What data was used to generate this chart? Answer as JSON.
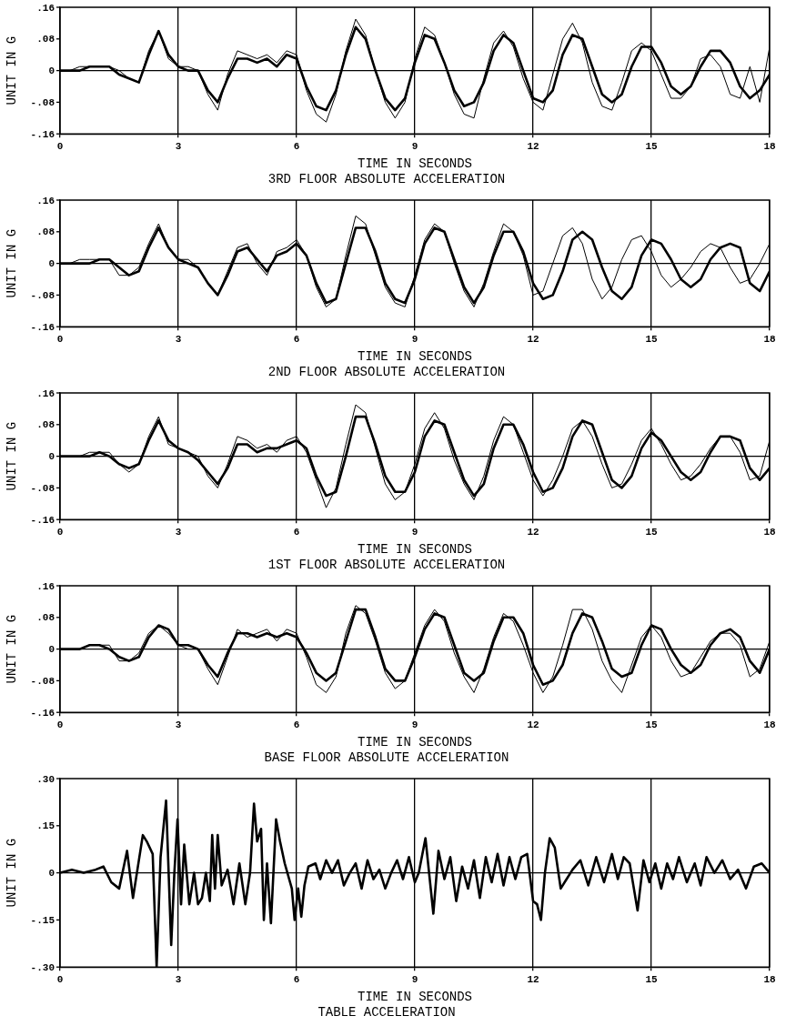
{
  "chart_data": [
    {
      "type": "line",
      "title": "3RD FLOOR ABSOLUTE ACCELERATION",
      "xlabel": "TIME IN SECONDS",
      "ylabel": "UNIT IN G",
      "marker": "none",
      "grid": "x",
      "x": [
        0,
        0.25,
        0.5,
        0.75,
        1,
        1.25,
        1.5,
        1.75,
        2,
        2.25,
        2.5,
        2.75,
        3,
        3.25,
        3.5,
        3.75,
        4,
        4.25,
        4.5,
        4.75,
        5,
        5.25,
        5.5,
        5.75,
        6,
        6.25,
        6.5,
        6.75,
        7,
        7.25,
        7.5,
        7.75,
        8,
        8.25,
        8.5,
        8.75,
        9,
        9.25,
        9.5,
        9.75,
        10,
        10.25,
        10.5,
        10.75,
        11,
        11.25,
        11.5,
        11.75,
        12,
        12.25,
        12.5,
        12.75,
        13,
        13.25,
        13.5,
        13.75,
        14,
        14.25,
        14.5,
        14.75,
        15,
        15.25,
        15.5,
        15.75,
        16,
        16.25,
        16.5,
        16.75,
        17,
        17.25,
        17.5,
        17.75,
        18
      ],
      "xlim": [
        0,
        18
      ],
      "xticks": [
        0,
        3,
        6,
        9,
        12,
        15,
        18
      ],
      "ylim": [
        -0.16,
        0.16
      ],
      "yticks": [
        {
          "value": -0.16,
          "label": "-.16"
        },
        {
          "value": -0.08,
          "label": "-.08"
        },
        {
          "value": 0,
          "label": "0"
        },
        {
          "value": 0.08,
          "label": ".08"
        },
        {
          "value": 0.16,
          "label": ".16"
        }
      ],
      "ref_lines": [
        {
          "axis": "y",
          "value": 0
        }
      ],
      "series": [
        {
          "color": "#000000",
          "values": [
            0,
            0,
            0,
            0.01,
            0.01,
            0.01,
            -0.01,
            -0.02,
            -0.03,
            0.04,
            0.1,
            0.04,
            0.01,
            0,
            0,
            -0.05,
            -0.08,
            -0.02,
            0.03,
            0.03,
            0.02,
            0.03,
            0.01,
            0.04,
            0.03,
            -0.04,
            -0.09,
            -0.1,
            -0.05,
            0.04,
            0.11,
            0.08,
            0,
            -0.07,
            -0.1,
            -0.07,
            0.02,
            0.09,
            0.08,
            0.02,
            -0.05,
            -0.09,
            -0.08,
            -0.03,
            0.05,
            0.09,
            0.07,
            0,
            -0.07,
            -0.08,
            -0.05,
            0.04,
            0.09,
            0.08,
            0.01,
            -0.06,
            -0.08,
            -0.06,
            0.01,
            0.06,
            0.06,
            0.02,
            -0.04,
            -0.06,
            -0.04,
            0.01,
            0.05,
            0.05,
            0.02,
            -0.04,
            -0.07,
            -0.05,
            -0.01
          ]
        },
        {
          "color": "#000000",
          "values": [
            0,
            0,
            0.01,
            0.01,
            0.01,
            0.01,
            0,
            -0.02,
            -0.03,
            0.05,
            0.1,
            0.03,
            0.01,
            0.01,
            0,
            -0.06,
            -0.1,
            -0.01,
            0.05,
            0.04,
            0.03,
            0.04,
            0.02,
            0.05,
            0.04,
            -0.05,
            -0.11,
            -0.13,
            -0.06,
            0.05,
            0.13,
            0.09,
            0,
            -0.08,
            -0.12,
            -0.08,
            0.03,
            0.11,
            0.09,
            0.02,
            -0.06,
            -0.11,
            -0.12,
            -0.02,
            0.07,
            0.1,
            0.06,
            -0.02,
            -0.08,
            -0.1,
            -0.01,
            0.08,
            0.12,
            0.07,
            -0.03,
            -0.09,
            -0.1,
            -0.03,
            0.05,
            0.07,
            0.05,
            -0.01,
            -0.07,
            -0.07,
            -0.04,
            0.03,
            0.04,
            0.01,
            -0.06,
            -0.07,
            0.01,
            -0.08,
            0.06
          ]
        }
      ]
    },
    {
      "type": "line",
      "title": "2ND FLOOR ABSOLUTE ACCELERATION",
      "xlabel": "TIME IN SECONDS",
      "ylabel": "UNIT IN G",
      "marker": "none",
      "grid": "x",
      "x": [
        0,
        0.25,
        0.5,
        0.75,
        1,
        1.25,
        1.5,
        1.75,
        2,
        2.25,
        2.5,
        2.75,
        3,
        3.25,
        3.5,
        3.75,
        4,
        4.25,
        4.5,
        4.75,
        5,
        5.25,
        5.5,
        5.75,
        6,
        6.25,
        6.5,
        6.75,
        7,
        7.25,
        7.5,
        7.75,
        8,
        8.25,
        8.5,
        8.75,
        9,
        9.25,
        9.5,
        9.75,
        10,
        10.25,
        10.5,
        10.75,
        11,
        11.25,
        11.5,
        11.75,
        12,
        12.25,
        12.5,
        12.75,
        13,
        13.25,
        13.5,
        13.75,
        14,
        14.25,
        14.5,
        14.75,
        15,
        15.25,
        15.5,
        15.75,
        16,
        16.25,
        16.5,
        16.75,
        17,
        17.25,
        17.5,
        17.75,
        18
      ],
      "xlim": [
        0,
        18
      ],
      "xticks": [
        0,
        3,
        6,
        9,
        12,
        15,
        18
      ],
      "ylim": [
        -0.16,
        0.16
      ],
      "yticks": [
        {
          "value": -0.16,
          "label": "-.16"
        },
        {
          "value": -0.08,
          "label": "-.08"
        },
        {
          "value": 0,
          "label": "0"
        },
        {
          "value": 0.08,
          "label": ".08"
        },
        {
          "value": 0.16,
          "label": ".16"
        }
      ],
      "ref_lines": [
        {
          "axis": "y",
          "value": 0
        }
      ],
      "series": [
        {
          "color": "#000000",
          "values": [
            0,
            0,
            0,
            0,
            0.01,
            0.01,
            -0.01,
            -0.03,
            -0.02,
            0.04,
            0.09,
            0.04,
            0.01,
            0,
            -0.01,
            -0.05,
            -0.08,
            -0.03,
            0.03,
            0.04,
            0.01,
            -0.02,
            0.02,
            0.03,
            0.05,
            0.02,
            -0.05,
            -0.1,
            -0.09,
            0,
            0.09,
            0.09,
            0.03,
            -0.05,
            -0.09,
            -0.1,
            -0.04,
            0.05,
            0.09,
            0.08,
            0.01,
            -0.06,
            -0.1,
            -0.06,
            0.02,
            0.08,
            0.08,
            0.03,
            -0.05,
            -0.09,
            -0.08,
            -0.02,
            0.06,
            0.08,
            0.06,
            -0.01,
            -0.07,
            -0.09,
            -0.06,
            0.02,
            0.06,
            0.05,
            0.01,
            -0.04,
            -0.06,
            -0.04,
            0.01,
            0.04,
            0.05,
            0.04,
            -0.05,
            -0.07,
            -0.02
          ]
        },
        {
          "color": "#000000",
          "values": [
            0,
            0,
            0.01,
            0.01,
            0.01,
            0.01,
            -0.03,
            -0.03,
            -0.01,
            0.05,
            0.1,
            0.04,
            0.01,
            0.01,
            -0.01,
            -0.05,
            -0.08,
            -0.02,
            0.04,
            0.05,
            0,
            -0.03,
            0.03,
            0.04,
            0.06,
            0.02,
            -0.06,
            -0.11,
            -0.09,
            0.02,
            0.12,
            0.1,
            0.02,
            -0.06,
            -0.1,
            -0.11,
            -0.03,
            0.06,
            0.1,
            0.08,
            0,
            -0.07,
            -0.11,
            -0.05,
            0.03,
            0.1,
            0.08,
            0.02,
            -0.08,
            -0.07,
            0,
            0.07,
            0.09,
            0.05,
            -0.04,
            -0.09,
            -0.06,
            0.01,
            0.06,
            0.07,
            0.03,
            -0.03,
            -0.06,
            -0.04,
            -0.01,
            0.03,
            0.05,
            0.04,
            -0.01,
            -0.05,
            -0.04,
            0,
            0.05
          ]
        }
      ]
    },
    {
      "type": "line",
      "title": "1ST FLOOR ABSOLUTE ACCELERATION",
      "xlabel": "TIME IN SECONDS",
      "ylabel": "UNIT IN G",
      "marker": "none",
      "grid": "x",
      "x": [
        0,
        0.25,
        0.5,
        0.75,
        1,
        1.25,
        1.5,
        1.75,
        2,
        2.25,
        2.5,
        2.75,
        3,
        3.25,
        3.5,
        3.75,
        4,
        4.25,
        4.5,
        4.75,
        5,
        5.25,
        5.5,
        5.75,
        6,
        6.25,
        6.5,
        6.75,
        7,
        7.25,
        7.5,
        7.75,
        8,
        8.25,
        8.5,
        8.75,
        9,
        9.25,
        9.5,
        9.75,
        10,
        10.25,
        10.5,
        10.75,
        11,
        11.25,
        11.5,
        11.75,
        12,
        12.25,
        12.5,
        12.75,
        13,
        13.25,
        13.5,
        13.75,
        14,
        14.25,
        14.5,
        14.75,
        15,
        15.25,
        15.5,
        15.75,
        16,
        16.25,
        16.5,
        16.75,
        17,
        17.25,
        17.5,
        17.75,
        18
      ],
      "xlim": [
        0,
        18
      ],
      "xticks": [
        0,
        3,
        6,
        9,
        12,
        15,
        18
      ],
      "ylim": [
        -0.16,
        0.16
      ],
      "yticks": [
        {
          "value": -0.16,
          "label": "-.16"
        },
        {
          "value": -0.08,
          "label": "-.08"
        },
        {
          "value": 0,
          "label": "0"
        },
        {
          "value": 0.08,
          "label": ".08"
        },
        {
          "value": 0.16,
          "label": ".16"
        }
      ],
      "ref_lines": [
        {
          "axis": "y",
          "value": 0
        }
      ],
      "series": [
        {
          "color": "#000000",
          "values": [
            0,
            0,
            0,
            0,
            0.01,
            0,
            -0.02,
            -0.03,
            -0.02,
            0.04,
            0.09,
            0.04,
            0.02,
            0.01,
            -0.01,
            -0.04,
            -0.07,
            -0.03,
            0.03,
            0.03,
            0.01,
            0.02,
            0.02,
            0.03,
            0.04,
            0.02,
            -0.05,
            -0.1,
            -0.09,
            0,
            0.1,
            0.1,
            0.03,
            -0.05,
            -0.09,
            -0.09,
            -0.04,
            0.05,
            0.09,
            0.08,
            0.01,
            -0.06,
            -0.1,
            -0.07,
            0.02,
            0.08,
            0.08,
            0.03,
            -0.04,
            -0.09,
            -0.08,
            -0.03,
            0.05,
            0.09,
            0.08,
            0.01,
            -0.06,
            -0.08,
            -0.05,
            0.02,
            0.06,
            0.04,
            0,
            -0.04,
            -0.06,
            -0.04,
            0.01,
            0.05,
            0.05,
            0.04,
            -0.03,
            -0.06,
            -0.03
          ]
        },
        {
          "color": "#000000",
          "values": [
            0,
            0,
            0,
            0.01,
            0.01,
            0.01,
            -0.02,
            -0.04,
            -0.02,
            0.05,
            0.1,
            0.03,
            0.02,
            0.01,
            0,
            -0.05,
            -0.08,
            -0.02,
            0.05,
            0.04,
            0.02,
            0.03,
            0.01,
            0.04,
            0.05,
            0.01,
            -0.06,
            -0.13,
            -0.08,
            0.03,
            0.13,
            0.11,
            0.02,
            -0.07,
            -0.11,
            -0.09,
            -0.02,
            0.07,
            0.11,
            0.07,
            -0.01,
            -0.07,
            -0.11,
            -0.05,
            0.04,
            0.1,
            0.08,
            0.01,
            -0.06,
            -0.1,
            -0.06,
            0,
            0.07,
            0.09,
            0.05,
            -0.02,
            -0.08,
            -0.07,
            -0.02,
            0.04,
            0.07,
            0.03,
            -0.02,
            -0.06,
            -0.05,
            -0.02,
            0.02,
            0.05,
            0.05,
            0.01,
            -0.06,
            -0.05,
            0.04
          ]
        }
      ]
    },
    {
      "type": "line",
      "title": "BASE FLOOR ABSOLUTE ACCELERATION",
      "xlabel": "TIME IN SECONDS",
      "ylabel": "UNIT IN G",
      "marker": "none",
      "grid": "x",
      "x": [
        0,
        0.25,
        0.5,
        0.75,
        1,
        1.25,
        1.5,
        1.75,
        2,
        2.25,
        2.5,
        2.75,
        3,
        3.25,
        3.5,
        3.75,
        4,
        4.25,
        4.5,
        4.75,
        5,
        5.25,
        5.5,
        5.75,
        6,
        6.25,
        6.5,
        6.75,
        7,
        7.25,
        7.5,
        7.75,
        8,
        8.25,
        8.5,
        8.75,
        9,
        9.25,
        9.5,
        9.75,
        10,
        10.25,
        10.5,
        10.75,
        11,
        11.25,
        11.5,
        11.75,
        12,
        12.25,
        12.5,
        12.75,
        13,
        13.25,
        13.5,
        13.75,
        14,
        14.25,
        14.5,
        14.75,
        15,
        15.25,
        15.5,
        15.75,
        16,
        16.25,
        16.5,
        16.75,
        17,
        17.25,
        17.5,
        17.75,
        18
      ],
      "xlim": [
        0,
        18
      ],
      "xticks": [
        0,
        3,
        6,
        9,
        12,
        15,
        18
      ],
      "ylim": [
        -0.16,
        0.16
      ],
      "yticks": [
        {
          "value": -0.16,
          "label": "-.16"
        },
        {
          "value": -0.08,
          "label": "-.08"
        },
        {
          "value": 0,
          "label": "0"
        },
        {
          "value": 0.08,
          "label": ".08"
        },
        {
          "value": 0.16,
          "label": ".16"
        }
      ],
      "ref_lines": [
        {
          "axis": "y",
          "value": 0
        }
      ],
      "series": [
        {
          "color": "#000000",
          "values": [
            0,
            0,
            0,
            0.01,
            0.01,
            0,
            -0.02,
            -0.03,
            -0.02,
            0.03,
            0.06,
            0.05,
            0.01,
            0.01,
            0,
            -0.04,
            -0.07,
            -0.01,
            0.04,
            0.04,
            0.03,
            0.04,
            0.03,
            0.04,
            0.03,
            -0.01,
            -0.06,
            -0.08,
            -0.06,
            0.02,
            0.1,
            0.1,
            0.03,
            -0.05,
            -0.08,
            -0.08,
            -0.02,
            0.05,
            0.09,
            0.08,
            0.01,
            -0.06,
            -0.08,
            -0.06,
            0.02,
            0.08,
            0.08,
            0.04,
            -0.04,
            -0.09,
            -0.08,
            -0.04,
            0.04,
            0.09,
            0.08,
            0.02,
            -0.05,
            -0.07,
            -0.06,
            0.01,
            0.06,
            0.05,
            0,
            -0.04,
            -0.06,
            -0.04,
            0.01,
            0.04,
            0.05,
            0.03,
            -0.03,
            -0.06,
            0
          ]
        },
        {
          "color": "#000000",
          "values": [
            0,
            0,
            0,
            0.01,
            0.01,
            0.01,
            -0.03,
            -0.03,
            -0.01,
            0.04,
            0.06,
            0.04,
            0.01,
            0,
            0,
            -0.05,
            -0.09,
            -0.02,
            0.05,
            0.03,
            0.04,
            0.05,
            0.02,
            0.05,
            0.04,
            -0.02,
            -0.09,
            -0.11,
            -0.07,
            0.04,
            0.11,
            0.09,
            0.02,
            -0.06,
            -0.1,
            -0.08,
            -0.01,
            0.06,
            0.1,
            0.07,
            -0.01,
            -0.07,
            -0.11,
            -0.05,
            0.03,
            0.09,
            0.07,
            0.01,
            -0.06,
            -0.11,
            -0.07,
            0.01,
            0.1,
            0.1,
            0.05,
            -0.03,
            -0.08,
            -0.11,
            -0.04,
            0.03,
            0.06,
            0.03,
            -0.03,
            -0.07,
            -0.06,
            -0.02,
            0.02,
            0.04,
            0.04,
            0.01,
            -0.07,
            -0.05,
            0.02
          ]
        }
      ]
    },
    {
      "type": "line",
      "title": "TABLE ACCELERATION",
      "xlabel": "TIME IN SECONDS",
      "ylabel": "UNIT IN G",
      "marker": "none",
      "grid": "x",
      "x": [
        0,
        0.3,
        0.6,
        0.9,
        1.1,
        1.3,
        1.5,
        1.7,
        1.85,
        1.95,
        2.1,
        2.2,
        2.35,
        2.45,
        2.55,
        2.69,
        2.82,
        2.9,
        2.98,
        3.07,
        3.15,
        3.28,
        3.4,
        3.5,
        3.6,
        3.7,
        3.8,
        3.86,
        3.93,
        4.0,
        4.1,
        4.25,
        4.4,
        4.55,
        4.7,
        4.82,
        4.92,
        5.0,
        5.1,
        5.17,
        5.25,
        5.35,
        5.48,
        5.58,
        5.7,
        5.88,
        5.95,
        6.04,
        6.12,
        6.2,
        6.3,
        6.48,
        6.6,
        6.75,
        6.9,
        7.05,
        7.2,
        7.35,
        7.5,
        7.65,
        7.8,
        7.95,
        8.1,
        8.25,
        8.4,
        8.55,
        8.7,
        8.85,
        9.0,
        9.1,
        9.27,
        9.47,
        9.6,
        9.75,
        9.9,
        10.05,
        10.2,
        10.35,
        10.5,
        10.65,
        10.8,
        10.95,
        11.1,
        11.25,
        11.4,
        11.55,
        11.7,
        11.85,
        12.0,
        12.1,
        12.2,
        12.3,
        12.42,
        12.55,
        12.7,
        12.85,
        13.0,
        13.2,
        13.4,
        13.6,
        13.8,
        14.0,
        14.15,
        14.3,
        14.45,
        14.65,
        14.8,
        14.95,
        15.1,
        15.25,
        15.4,
        15.55,
        15.7,
        15.9,
        16.1,
        16.25,
        16.4,
        16.6,
        16.8,
        17.0,
        17.2,
        17.4,
        17.6,
        17.8,
        18.0
      ],
      "xlim": [
        0,
        18
      ],
      "xticks": [
        0,
        3,
        6,
        9,
        12,
        15,
        18
      ],
      "ylim": [
        -0.3,
        0.3
      ],
      "yticks": [
        {
          "value": -0.3,
          "label": "-.30"
        },
        {
          "value": -0.15,
          "label": "-.15"
        },
        {
          "value": 0,
          "label": "0"
        },
        {
          "value": 0.15,
          "label": ".15"
        },
        {
          "value": 0.3,
          "label": ".30"
        }
      ],
      "ref_lines": [
        {
          "axis": "y",
          "value": 0
        }
      ],
      "series": [
        {
          "color": "#000000",
          "values": [
            0,
            0.01,
            0,
            0.01,
            0.02,
            -0.03,
            -0.05,
            0.07,
            -0.08,
            0,
            0.12,
            0.1,
            0.06,
            -0.3,
            0.05,
            0.23,
            -0.23,
            0,
            0.17,
            -0.1,
            0.09,
            -0.1,
            0,
            -0.1,
            -0.08,
            0,
            -0.09,
            0.12,
            -0.05,
            0.12,
            -0.04,
            0.01,
            -0.1,
            0.03,
            -0.1,
            0,
            0.22,
            0.1,
            0.14,
            -0.15,
            0.03,
            -0.16,
            0.17,
            0.1,
            0.03,
            -0.05,
            -0.15,
            -0.05,
            -0.14,
            -0.04,
            0.02,
            0.03,
            -0.02,
            0.04,
            0,
            0.04,
            -0.04,
            0,
            0.03,
            -0.05,
            0.04,
            -0.02,
            0.01,
            -0.05,
            0,
            0.04,
            -0.02,
            0.05,
            -0.03,
            0,
            0.11,
            -0.13,
            0.07,
            -0.02,
            0.05,
            -0.09,
            0.02,
            -0.05,
            0.04,
            -0.08,
            0.05,
            -0.03,
            0.06,
            -0.04,
            0.05,
            -0.02,
            0.05,
            0.06,
            -0.09,
            -0.1,
            -0.15,
            0,
            0.11,
            0.08,
            -0.05,
            -0.02,
            0.01,
            0.04,
            -0.04,
            0.05,
            -0.03,
            0.06,
            -0.02,
            0.05,
            0.03,
            -0.12,
            0.04,
            -0.03,
            0.03,
            -0.05,
            0.03,
            -0.02,
            0.05,
            -0.03,
            0.03,
            -0.04,
            0.05,
            0,
            0.04,
            -0.02,
            0.01,
            -0.05,
            0.02,
            0.03,
            0
          ]
        }
      ]
    }
  ]
}
